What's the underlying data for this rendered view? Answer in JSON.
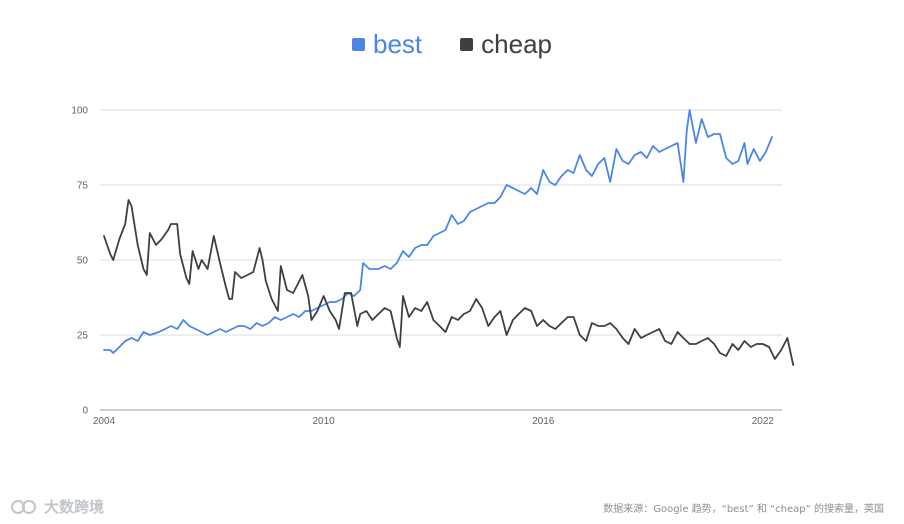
{
  "chart_data": {
    "type": "line",
    "title": "",
    "xlabel": "",
    "ylabel": "",
    "xlim": [
      2004.0,
      2022.25
    ],
    "ylim": [
      0,
      100
    ],
    "y_ticks": [
      0,
      25,
      50,
      75,
      100
    ],
    "x_ticks": [
      {
        "value": 2004,
        "label": "2004"
      },
      {
        "value": 2010,
        "label": "2010"
      },
      {
        "value": 2016,
        "label": "2016"
      },
      {
        "value": 2022,
        "label": "2022"
      }
    ],
    "grid": true,
    "legend_position": "top-center",
    "series": [
      {
        "name": "best",
        "color": "#4a86e8",
        "points": [
          [
            2004.0,
            20
          ],
          [
            2004.17,
            20
          ],
          [
            2004.25,
            19
          ],
          [
            2004.42,
            21
          ],
          [
            2004.58,
            23
          ],
          [
            2004.75,
            24
          ],
          [
            2004.92,
            23
          ],
          [
            2005.08,
            26
          ],
          [
            2005.25,
            25
          ],
          [
            2005.5,
            26
          ],
          [
            2005.67,
            27
          ],
          [
            2005.83,
            28
          ],
          [
            2006.0,
            27
          ],
          [
            2006.17,
            30
          ],
          [
            2006.33,
            28
          ],
          [
            2006.5,
            27
          ],
          [
            2006.67,
            26
          ],
          [
            2006.83,
            25
          ],
          [
            2007.0,
            26
          ],
          [
            2007.17,
            27
          ],
          [
            2007.33,
            26
          ],
          [
            2007.5,
            27
          ],
          [
            2007.67,
            28
          ],
          [
            2007.83,
            28
          ],
          [
            2008.0,
            27
          ],
          [
            2008.17,
            29
          ],
          [
            2008.33,
            28
          ],
          [
            2008.5,
            29
          ],
          [
            2008.67,
            31
          ],
          [
            2008.83,
            30
          ],
          [
            2009.0,
            31
          ],
          [
            2009.17,
            32
          ],
          [
            2009.33,
            31
          ],
          [
            2009.5,
            33
          ],
          [
            2009.67,
            33
          ],
          [
            2009.83,
            34
          ],
          [
            2010.0,
            35
          ],
          [
            2010.17,
            36
          ],
          [
            2010.33,
            36
          ],
          [
            2010.5,
            37
          ],
          [
            2010.67,
            39
          ],
          [
            2010.83,
            38
          ],
          [
            2011.0,
            40
          ],
          [
            2011.08,
            49
          ],
          [
            2011.25,
            47
          ],
          [
            2011.5,
            47
          ],
          [
            2011.67,
            48
          ],
          [
            2011.83,
            47
          ],
          [
            2012.0,
            49
          ],
          [
            2012.17,
            53
          ],
          [
            2012.33,
            51
          ],
          [
            2012.5,
            54
          ],
          [
            2012.67,
            55
          ],
          [
            2012.83,
            55
          ],
          [
            2013.0,
            58
          ],
          [
            2013.17,
            59
          ],
          [
            2013.33,
            60
          ],
          [
            2013.5,
            65
          ],
          [
            2013.67,
            62
          ],
          [
            2013.83,
            63
          ],
          [
            2014.0,
            66
          ],
          [
            2014.17,
            67
          ],
          [
            2014.33,
            68
          ],
          [
            2014.5,
            69
          ],
          [
            2014.67,
            69
          ],
          [
            2014.83,
            71
          ],
          [
            2015.0,
            75
          ],
          [
            2015.17,
            74
          ],
          [
            2015.33,
            73
          ],
          [
            2015.5,
            72
          ],
          [
            2015.67,
            74
          ],
          [
            2015.83,
            72
          ],
          [
            2016.0,
            80
          ],
          [
            2016.17,
            76
          ],
          [
            2016.33,
            75
          ],
          [
            2016.5,
            78
          ],
          [
            2016.67,
            80
          ],
          [
            2016.83,
            79
          ],
          [
            2017.0,
            85
          ],
          [
            2017.17,
            80
          ],
          [
            2017.33,
            78
          ],
          [
            2017.5,
            82
          ],
          [
            2017.67,
            84
          ],
          [
            2017.83,
            76
          ],
          [
            2018.0,
            87
          ],
          [
            2018.17,
            83
          ],
          [
            2018.33,
            82
          ],
          [
            2018.5,
            85
          ],
          [
            2018.67,
            86
          ],
          [
            2018.83,
            84
          ],
          [
            2019.0,
            88
          ],
          [
            2019.17,
            86
          ],
          [
            2019.33,
            87
          ],
          [
            2019.5,
            88
          ],
          [
            2019.67,
            89
          ],
          [
            2019.83,
            76
          ],
          [
            2019.92,
            93
          ],
          [
            2020.0,
            100
          ],
          [
            2020.17,
            89
          ],
          [
            2020.33,
            97
          ],
          [
            2020.5,
            91
          ],
          [
            2020.67,
            92
          ],
          [
            2020.83,
            92
          ],
          [
            2021.0,
            84
          ],
          [
            2021.17,
            82
          ],
          [
            2021.33,
            83
          ],
          [
            2021.5,
            89
          ],
          [
            2021.58,
            82
          ],
          [
            2021.75,
            87
          ],
          [
            2021.92,
            83
          ],
          [
            2022.08,
            86
          ],
          [
            2022.25,
            91
          ]
        ]
      },
      {
        "name": "cheap",
        "color": "#3c4043",
        "points": [
          [
            2004.0,
            58
          ],
          [
            2004.17,
            52
          ],
          [
            2004.25,
            50
          ],
          [
            2004.42,
            57
          ],
          [
            2004.58,
            62
          ],
          [
            2004.67,
            70
          ],
          [
            2004.75,
            68
          ],
          [
            2004.92,
            55
          ],
          [
            2005.08,
            47
          ],
          [
            2005.17,
            45
          ],
          [
            2005.25,
            59
          ],
          [
            2005.42,
            55
          ],
          [
            2005.58,
            57
          ],
          [
            2005.75,
            60
          ],
          [
            2005.83,
            62
          ],
          [
            2006.0,
            62
          ],
          [
            2006.08,
            52
          ],
          [
            2006.25,
            44
          ],
          [
            2006.33,
            42
          ],
          [
            2006.42,
            53
          ],
          [
            2006.58,
            47
          ],
          [
            2006.67,
            50
          ],
          [
            2006.83,
            47
          ],
          [
            2007.0,
            58
          ],
          [
            2007.17,
            49
          ],
          [
            2007.33,
            41
          ],
          [
            2007.42,
            37
          ],
          [
            2007.5,
            37
          ],
          [
            2007.58,
            46
          ],
          [
            2007.75,
            44
          ],
          [
            2007.92,
            45
          ],
          [
            2008.08,
            46
          ],
          [
            2008.25,
            54
          ],
          [
            2008.33,
            50
          ],
          [
            2008.42,
            43
          ],
          [
            2008.58,
            37
          ],
          [
            2008.75,
            33
          ],
          [
            2008.83,
            48
          ],
          [
            2009.0,
            40
          ],
          [
            2009.17,
            39
          ],
          [
            2009.42,
            45
          ],
          [
            2009.58,
            38
          ],
          [
            2009.67,
            30
          ],
          [
            2009.83,
            33
          ],
          [
            2010.0,
            38
          ],
          [
            2010.17,
            33
          ],
          [
            2010.33,
            30
          ],
          [
            2010.42,
            27
          ],
          [
            2010.58,
            39
          ],
          [
            2010.75,
            39
          ],
          [
            2010.92,
            28
          ],
          [
            2011.0,
            32
          ],
          [
            2011.17,
            33
          ],
          [
            2011.33,
            30
          ],
          [
            2011.5,
            32
          ],
          [
            2011.67,
            34
          ],
          [
            2011.83,
            33
          ],
          [
            2012.0,
            24
          ],
          [
            2012.08,
            21
          ],
          [
            2012.17,
            38
          ],
          [
            2012.33,
            31
          ],
          [
            2012.5,
            34
          ],
          [
            2012.67,
            33
          ],
          [
            2012.83,
            36
          ],
          [
            2013.0,
            30
          ],
          [
            2013.17,
            28
          ],
          [
            2013.33,
            26
          ],
          [
            2013.5,
            31
          ],
          [
            2013.67,
            30
          ],
          [
            2013.83,
            32
          ],
          [
            2014.0,
            33
          ],
          [
            2014.17,
            37
          ],
          [
            2014.33,
            34
          ],
          [
            2014.5,
            28
          ],
          [
            2014.67,
            31
          ],
          [
            2014.83,
            33
          ],
          [
            2015.0,
            25
          ],
          [
            2015.17,
            30
          ],
          [
            2015.33,
            32
          ],
          [
            2015.5,
            34
          ],
          [
            2015.67,
            33
          ],
          [
            2015.83,
            28
          ],
          [
            2016.0,
            30
          ],
          [
            2016.17,
            28
          ],
          [
            2016.33,
            27
          ],
          [
            2016.5,
            29
          ],
          [
            2016.67,
            31
          ],
          [
            2016.83,
            31
          ],
          [
            2017.0,
            25
          ],
          [
            2017.17,
            23
          ],
          [
            2017.33,
            29
          ],
          [
            2017.5,
            28
          ],
          [
            2017.67,
            28
          ],
          [
            2017.83,
            29
          ],
          [
            2018.0,
            27
          ],
          [
            2018.17,
            24
          ],
          [
            2018.33,
            22
          ],
          [
            2018.5,
            27
          ],
          [
            2018.67,
            24
          ],
          [
            2018.83,
            25
          ],
          [
            2019.0,
            26
          ],
          [
            2019.17,
            27
          ],
          [
            2019.33,
            23
          ],
          [
            2019.5,
            22
          ],
          [
            2019.67,
            26
          ],
          [
            2019.83,
            24
          ],
          [
            2020.0,
            22
          ],
          [
            2020.17,
            22
          ],
          [
            2020.33,
            23
          ],
          [
            2020.5,
            24
          ],
          [
            2020.67,
            22
          ],
          [
            2020.83,
            19
          ],
          [
            2021.0,
            18
          ],
          [
            2021.17,
            22
          ],
          [
            2021.33,
            20
          ],
          [
            2021.5,
            23
          ],
          [
            2021.67,
            21
          ],
          [
            2021.83,
            22
          ],
          [
            2022.0,
            22
          ],
          [
            2022.17,
            21
          ],
          [
            2022.33,
            17
          ],
          [
            2022.5,
            20
          ],
          [
            2022.67,
            24
          ],
          [
            2022.83,
            15
          ]
        ]
      }
    ]
  },
  "legend": {
    "best": {
      "label": "best",
      "color": "#4a86e8"
    },
    "cheap": {
      "label": "cheap",
      "color": "#3c4043"
    }
  },
  "source_note": "数据来源：Google 趋势，“best” 和 “cheap” 的搜索量，英国",
  "watermark": "大数跨境"
}
